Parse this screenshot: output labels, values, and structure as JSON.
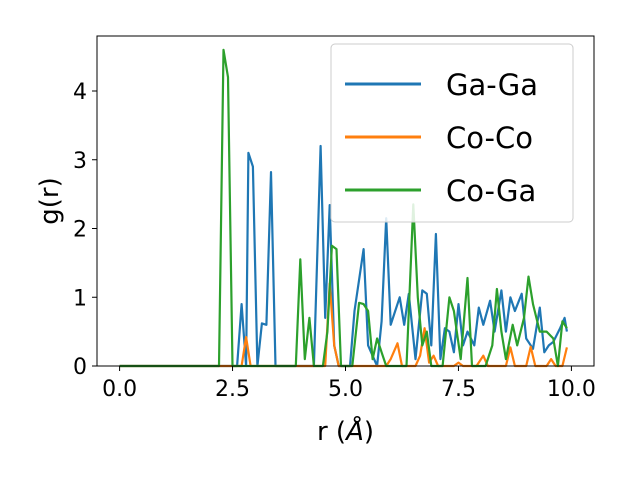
{
  "chart_data": {
    "type": "line",
    "xlabel": "r (",
    "xlabel_unit": "Å",
    "xlabel_end": ")",
    "ylabel": "g(r)",
    "xlim": [
      -0.5,
      10.5
    ],
    "ylim": [
      0,
      4.8
    ],
    "xticks": [
      0.0,
      2.5,
      5.0,
      7.5,
      10.0
    ],
    "xtick_labels": [
      "0.0",
      "2.5",
      "5.0",
      "7.5",
      "10.0"
    ],
    "yticks": [
      0,
      1,
      2,
      3,
      4
    ],
    "ytick_labels": [
      "0",
      "1",
      "2",
      "3",
      "4"
    ],
    "grid": false,
    "legend_position": "top-right",
    "series": [
      {
        "name": "Ga-Ga",
        "color": "#1f77b4",
        "points": [
          [
            0.0,
            0
          ],
          [
            2.6,
            0
          ],
          [
            2.7,
            0.9
          ],
          [
            2.8,
            0
          ],
          [
            2.85,
            3.1
          ],
          [
            2.95,
            2.9
          ],
          [
            3.05,
            0
          ],
          [
            3.15,
            0.62
          ],
          [
            3.25,
            0.6
          ],
          [
            3.35,
            2.82
          ],
          [
            3.45,
            0
          ],
          [
            4.3,
            0
          ],
          [
            4.45,
            3.2
          ],
          [
            4.55,
            0.7
          ],
          [
            4.65,
            2.34
          ],
          [
            4.75,
            0.3
          ],
          [
            4.85,
            0
          ],
          [
            5.1,
            0
          ],
          [
            5.2,
            0.8
          ],
          [
            5.4,
            1.7
          ],
          [
            5.5,
            0.3
          ],
          [
            5.7,
            0
          ],
          [
            5.8,
            0.65
          ],
          [
            5.9,
            2.15
          ],
          [
            6.0,
            0.6
          ],
          [
            6.1,
            0.8
          ],
          [
            6.2,
            1.0
          ],
          [
            6.3,
            0.6
          ],
          [
            6.4,
            1.05
          ],
          [
            6.55,
            0.1
          ],
          [
            6.7,
            1.1
          ],
          [
            6.8,
            1.05
          ],
          [
            6.9,
            0.3
          ],
          [
            7.0,
            1.92
          ],
          [
            7.1,
            0.1
          ],
          [
            7.2,
            0.55
          ],
          [
            7.3,
            0.5
          ],
          [
            7.4,
            0.2
          ],
          [
            7.5,
            0.9
          ],
          [
            7.6,
            0.3
          ],
          [
            7.7,
            0.5
          ],
          [
            7.85,
            0.3
          ],
          [
            7.95,
            0.85
          ],
          [
            8.05,
            0.6
          ],
          [
            8.2,
            0.95
          ],
          [
            8.3,
            0.5
          ],
          [
            8.45,
            1.1
          ],
          [
            8.55,
            0.5
          ],
          [
            8.65,
            1.0
          ],
          [
            8.75,
            0.8
          ],
          [
            8.9,
            1.05
          ],
          [
            9.0,
            0.4
          ],
          [
            9.15,
            0.25
          ],
          [
            9.3,
            0.85
          ],
          [
            9.4,
            0.2
          ],
          [
            9.5,
            0.3
          ],
          [
            9.6,
            0.35
          ],
          [
            9.75,
            0.55
          ],
          [
            9.85,
            0.7
          ],
          [
            9.9,
            0.5
          ]
        ]
      },
      {
        "name": "Co-Co",
        "color": "#ff7f0e",
        "points": [
          [
            0.0,
            0
          ],
          [
            2.7,
            0
          ],
          [
            2.8,
            0.42
          ],
          [
            2.9,
            0
          ],
          [
            4.55,
            0
          ],
          [
            4.65,
            1.2
          ],
          [
            4.75,
            0.3
          ],
          [
            4.85,
            0
          ],
          [
            5.9,
            0
          ],
          [
            6.0,
            0.1
          ],
          [
            6.15,
            0.33
          ],
          [
            6.25,
            0
          ],
          [
            6.55,
            0
          ],
          [
            6.65,
            0.15
          ],
          [
            6.75,
            0.55
          ],
          [
            6.85,
            0.05
          ],
          [
            6.95,
            0.15
          ],
          [
            7.05,
            0
          ],
          [
            7.4,
            0
          ],
          [
            7.5,
            0.05
          ],
          [
            7.6,
            0
          ],
          [
            7.9,
            0
          ],
          [
            8.05,
            0.15
          ],
          [
            8.15,
            0
          ],
          [
            8.55,
            0
          ],
          [
            8.65,
            0.27
          ],
          [
            8.75,
            0
          ],
          [
            9.0,
            0
          ],
          [
            9.1,
            0.28
          ],
          [
            9.2,
            0
          ],
          [
            9.45,
            0
          ],
          [
            9.55,
            0.1
          ],
          [
            9.65,
            0
          ],
          [
            9.8,
            0
          ],
          [
            9.9,
            0.27
          ]
        ]
      },
      {
        "name": "Co-Ga",
        "color": "#2ca02c",
        "points": [
          [
            0.0,
            0
          ],
          [
            2.2,
            0
          ],
          [
            2.3,
            4.6
          ],
          [
            2.4,
            4.2
          ],
          [
            2.5,
            0
          ],
          [
            3.9,
            0
          ],
          [
            4.0,
            1.55
          ],
          [
            4.1,
            0.1
          ],
          [
            4.2,
            0.7
          ],
          [
            4.3,
            0
          ],
          [
            4.5,
            0
          ],
          [
            4.6,
            0.5
          ],
          [
            4.7,
            1.75
          ],
          [
            4.8,
            1.7
          ],
          [
            4.9,
            0
          ],
          [
            5.15,
            0
          ],
          [
            5.3,
            0.92
          ],
          [
            5.4,
            0.9
          ],
          [
            5.5,
            0.8
          ],
          [
            5.6,
            0.1
          ],
          [
            5.7,
            0.4
          ],
          [
            5.8,
            0.2
          ],
          [
            5.9,
            0
          ],
          [
            6.35,
            0
          ],
          [
            6.5,
            2.35
          ],
          [
            6.6,
            1.0
          ],
          [
            6.7,
            0.3
          ],
          [
            6.8,
            0.5
          ],
          [
            6.9,
            0
          ],
          [
            7.15,
            0
          ],
          [
            7.3,
            1.0
          ],
          [
            7.4,
            0.8
          ],
          [
            7.55,
            0.1
          ],
          [
            7.7,
            1.28
          ],
          [
            7.8,
            0
          ],
          [
            8.1,
            0
          ],
          [
            8.25,
            0.3
          ],
          [
            8.35,
            1.12
          ],
          [
            8.45,
            0.5
          ],
          [
            8.55,
            0.1
          ],
          [
            8.7,
            0.6
          ],
          [
            8.8,
            0.3
          ],
          [
            8.95,
            0.7
          ],
          [
            9.05,
            1.3
          ],
          [
            9.15,
            0.9
          ],
          [
            9.3,
            0.5
          ],
          [
            9.45,
            0.5
          ],
          [
            9.6,
            0.4
          ],
          [
            9.7,
            0
          ],
          [
            9.8,
            0.65
          ],
          [
            9.9,
            0.55
          ]
        ]
      }
    ]
  }
}
